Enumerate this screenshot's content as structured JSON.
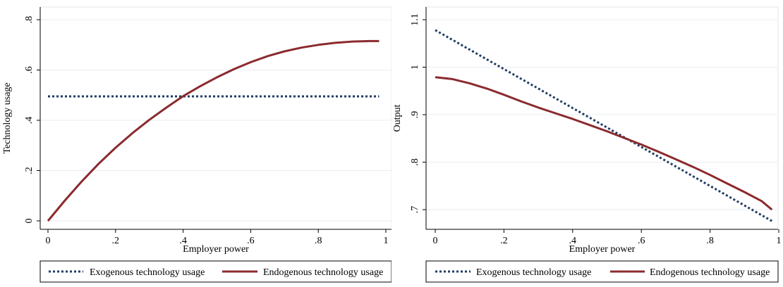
{
  "chart_data": [
    {
      "type": "line",
      "xlabel": "Employer power",
      "ylabel": "Technology usage",
      "xlim": [
        0,
        1
      ],
      "ylim": [
        0,
        0.8
      ],
      "x_ticks": [
        0,
        0.2,
        0.4,
        0.6,
        0.8,
        1
      ],
      "x_tick_labels": [
        "0",
        ".2",
        ".4",
        ".6",
        ".8",
        "1"
      ],
      "y_ticks": [
        0,
        0.2,
        0.4,
        0.6,
        0.8
      ],
      "y_tick_labels": [
        "0",
        ".2",
        ".4",
        ".6",
        ".8"
      ],
      "grid": true,
      "legend_position": "bottom",
      "series": [
        {
          "name": "Exogenous technology usage",
          "color": "#1f3c63",
          "style": "dotted",
          "x": [
            0.0,
            0.98
          ],
          "y": [
            0.495,
            0.495
          ]
        },
        {
          "name": "Endogenous technology usage",
          "color": "#8b2a2e",
          "style": "solid",
          "x": [
            0.0,
            0.05,
            0.1,
            0.15,
            0.2,
            0.25,
            0.3,
            0.35,
            0.4,
            0.45,
            0.5,
            0.55,
            0.6,
            0.65,
            0.7,
            0.75,
            0.8,
            0.85,
            0.9,
            0.95,
            0.98
          ],
          "y": [
            0.0,
            0.081,
            0.157,
            0.227,
            0.291,
            0.349,
            0.402,
            0.45,
            0.496,
            0.535,
            0.571,
            0.603,
            0.631,
            0.655,
            0.674,
            0.689,
            0.7,
            0.708,
            0.713,
            0.715,
            0.715
          ]
        }
      ]
    },
    {
      "type": "line",
      "xlabel": "Employer power",
      "ylabel": "Output",
      "xlim": [
        0,
        1
      ],
      "ylim": [
        0.68,
        1.1
      ],
      "x_ticks": [
        0,
        0.2,
        0.4,
        0.6,
        0.8,
        1
      ],
      "x_tick_labels": [
        "0",
        ".2",
        ".4",
        ".6",
        ".8",
        "1"
      ],
      "y_ticks": [
        0.7,
        0.8,
        0.9,
        1.0,
        1.1
      ],
      "y_tick_labels": [
        ".7",
        ".8",
        ".9",
        "1",
        "1.1"
      ],
      "grid": true,
      "legend_position": "bottom",
      "series": [
        {
          "name": "Exogenous technology usage",
          "color": "#1f3c63",
          "style": "dotted",
          "x": [
            0.0,
            0.98
          ],
          "y": [
            1.078,
            0.676
          ]
        },
        {
          "name": "Endogenous technology usage",
          "color": "#8b2a2e",
          "style": "solid",
          "x": [
            0.0,
            0.05,
            0.1,
            0.15,
            0.2,
            0.25,
            0.3,
            0.35,
            0.4,
            0.45,
            0.5,
            0.55,
            0.6,
            0.65,
            0.7,
            0.75,
            0.8,
            0.85,
            0.9,
            0.95,
            0.98
          ],
          "y": [
            0.979,
            0.981,
            0.98,
            0.976,
            0.97,
            0.961,
            0.95,
            0.937,
            0.922,
            0.905,
            0.887,
            0.868,
            0.848,
            0.826,
            0.803,
            0.779,
            0.754,
            0.729,
            0.703,
            0.676,
            0.7
          ]
        }
      ]
    }
  ]
}
